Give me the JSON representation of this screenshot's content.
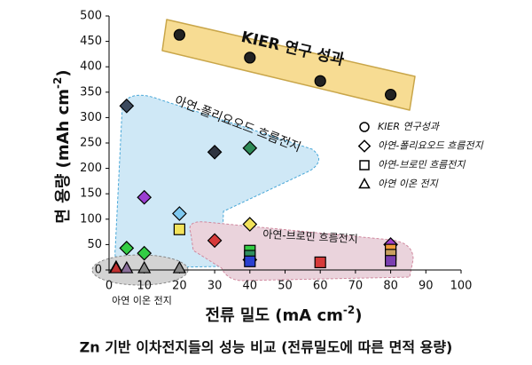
{
  "chart_data": {
    "type": "scatter",
    "title": "Zn 기반 이차전지들의 성능 비교 (전류밀도에 따른 면적 용량)",
    "xlabel": {
      "main": "전류 밀도 (mA cm",
      "sup": "-2",
      "end": ")"
    },
    "ylabel": {
      "main": "면 용량 (mAh cm",
      "sup": "-2",
      "end": ")"
    },
    "xlim": [
      0,
      100
    ],
    "xticks": [
      0,
      10,
      20,
      30,
      40,
      50,
      60,
      70,
      80,
      90,
      100
    ],
    "ylim": [
      0,
      500
    ],
    "yticks": [
      0,
      50,
      100,
      150,
      200,
      250,
      300,
      350,
      400,
      450,
      500
    ],
    "annotations": [
      "KIER 연구 성과",
      "아연-폴리요오드 흐름전지",
      "아연-브로민 흐름전지",
      "아연 이온 전지"
    ],
    "series": [
      {
        "name": "KIER 연구성과",
        "marker": "circle",
        "x": [
          20,
          40,
          60,
          80
        ],
        "values": [
          463,
          418,
          372,
          345
        ],
        "colors": [
          "#222",
          "#222",
          "#222",
          "#222"
        ]
      },
      {
        "name": "아연-폴리요오드 흐름전지",
        "marker": "diamond",
        "x": [
          5,
          30,
          40,
          10,
          20,
          40,
          5,
          10,
          30,
          40,
          80
        ],
        "values": [
          323,
          232,
          240,
          143,
          111,
          90,
          43,
          33,
          58,
          20,
          50
        ],
        "colors": [
          "#3c4a5e",
          "#2f3440",
          "#2e8b57",
          "#9b3fd1",
          "#7ec8f0",
          "#f2e25a",
          "#33cc44",
          "#33cc44",
          "#d63a3a",
          "#2a3fd0",
          "#a040c8"
        ]
      },
      {
        "name": "아연-브로민 흐름전지",
        "marker": "square",
        "x": [
          20,
          40,
          40,
          40,
          60,
          80,
          80,
          80
        ],
        "values": [
          80,
          38,
          28,
          17,
          15,
          40,
          30,
          18
        ],
        "colors": [
          "#f2e25a",
          "#33cc44",
          "#2f8f5f",
          "#2a3fd0",
          "#d63a3a",
          "#f09a3a",
          "#c8a060",
          "#7a3fb0"
        ]
      },
      {
        "name": "아연 이온 전지",
        "marker": "triangle",
        "x": [
          2,
          5,
          10,
          20,
          2
        ],
        "values": [
          5,
          3,
          3,
          3,
          3
        ],
        "colors": [
          "#777",
          "#8a6f9a",
          "#888",
          "#888",
          "#c03030"
        ]
      }
    ]
  }
}
